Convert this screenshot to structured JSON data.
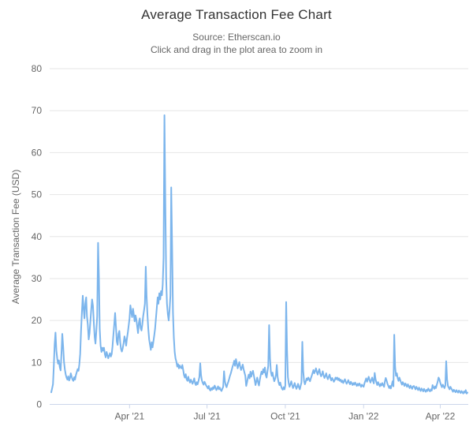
{
  "header": {
    "title": "Average Transaction Fee Chart",
    "subtitle_source": "Source: Etherscan.io",
    "subtitle_hint": "Click and drag in the plot area to zoom in"
  },
  "chart_data": {
    "type": "line",
    "title": "Average Transaction Fee Chart",
    "subtitle": "Source: Etherscan.io",
    "hint": "Click and drag in the plot area to zoom in",
    "xlabel": "",
    "ylabel": "Average Transaction Fee (USD)",
    "ylim": [
      0,
      80
    ],
    "yticks": [
      0,
      10,
      20,
      30,
      40,
      50,
      60,
      70,
      80
    ],
    "grid": true,
    "legend": false,
    "x_tick_labels": [
      "Apr '21",
      "Jul '21",
      "Oct '21",
      "Jan '22",
      "Apr '22"
    ],
    "x_tick_point_index": [
      92,
      183,
      275,
      367,
      457
    ],
    "x_range_note": "daily points, late Dec 2020 through early May 2022",
    "line_color": "#7cb5ec",
    "grid_color": "#e6e6e6",
    "axis_line_color": "#ccd6eb",
    "label_color": "#666666",
    "title_color": "#333333",
    "values": [
      2.9,
      3.8,
      4.8,
      8.9,
      14.2,
      17.1,
      12.8,
      10.9,
      9.7,
      10.5,
      8.9,
      8.1,
      12.3,
      16.8,
      13.8,
      10.1,
      8.3,
      7.1,
      6.4,
      5.9,
      6.7,
      5.7,
      6.3,
      7.4,
      6.6,
      5.9,
      5.6,
      6.5,
      5.9,
      7.0,
      7.7,
      8.4,
      8.0,
      9.5,
      12.0,
      17.5,
      22.0,
      25.9,
      23.0,
      20.5,
      24.0,
      25.5,
      21.0,
      19.0,
      15.5,
      17.0,
      20.0,
      22.5,
      25.0,
      23.5,
      19.5,
      16.0,
      14.5,
      17.5,
      21.0,
      38.5,
      30.0,
      18.0,
      14.0,
      12.5,
      13.5,
      12.8,
      13.5,
      12.0,
      11.2,
      12.5,
      11.8,
      11.0,
      11.6,
      12.2,
      11.4,
      12.0,
      13.8,
      16.5,
      19.0,
      21.8,
      18.5,
      15.0,
      14.2,
      16.8,
      17.5,
      14.8,
      13.2,
      12.6,
      13.4,
      14.6,
      16.2,
      15.4,
      14.0,
      15.8,
      17.2,
      18.9,
      20.5,
      23.6,
      22.0,
      20.8,
      22.8,
      21.5,
      19.8,
      21.2,
      20.2,
      18.5,
      17.0,
      19.5,
      20.5,
      18.2,
      17.6,
      19.0,
      21.0,
      22.4,
      24.0,
      32.8,
      26.0,
      21.5,
      18.0,
      15.5,
      14.2,
      13.0,
      14.8,
      13.6,
      15.0,
      16.5,
      18.0,
      20.5,
      23.0,
      25.5,
      24.0,
      26.5,
      25.0,
      27.0,
      26.0,
      28.5,
      35.0,
      68.9,
      48.0,
      30.0,
      24.0,
      21.5,
      20.0,
      22.5,
      26.0,
      51.7,
      38.0,
      22.0,
      16.0,
      12.5,
      11.0,
      10.2,
      9.0,
      9.6,
      8.6,
      9.3,
      8.8,
      8.6,
      9.4,
      8.2,
      7.0,
      6.4,
      7.2,
      6.0,
      5.6,
      6.6,
      5.8,
      5.2,
      5.9,
      5.4,
      4.9,
      5.5,
      6.2,
      5.0,
      4.6,
      5.3,
      4.8,
      5.6,
      6.5,
      9.8,
      7.0,
      5.7,
      5.1,
      4.7,
      5.4,
      5.0,
      4.5,
      4.2,
      3.8,
      4.4,
      3.6,
      3.3,
      3.9,
      3.5,
      4.1,
      3.7,
      4.5,
      4.0,
      3.4,
      3.8,
      4.3,
      3.6,
      4.0,
      3.5,
      3.2,
      3.7,
      4.2,
      7.9,
      5.5,
      4.6,
      4.1,
      4.8,
      5.4,
      6.1,
      6.8,
      7.4,
      8.2,
      9.0,
      9.6,
      10.4,
      9.2,
      10.8,
      9.8,
      8.6,
      9.3,
      10.1,
      9.0,
      8.2,
      8.8,
      9.5,
      8.4,
      7.6,
      6.8,
      4.4,
      5.2,
      6.3,
      7.1,
      6.2,
      7.8,
      6.6,
      7.4,
      8.0,
      6.9,
      5.8,
      4.6,
      5.5,
      6.4,
      5.2,
      4.5,
      5.8,
      6.9,
      7.8,
      7.2,
      8.4,
      7.6,
      8.8,
      7.0,
      6.4,
      7.9,
      9.2,
      18.9,
      11.0,
      7.8,
      6.8,
      7.6,
      6.4,
      5.5,
      6.1,
      7.0,
      9.4,
      6.5,
      5.3,
      4.6,
      5.2,
      4.4,
      3.8,
      3.5,
      4.1,
      3.6,
      4.5,
      24.4,
      13.0,
      6.5,
      5.0,
      4.2,
      4.8,
      5.5,
      4.6,
      3.9,
      4.4,
      5.1,
      4.3,
      3.7,
      4.2,
      4.9,
      4.1,
      3.6,
      4.5,
      5.2,
      14.9,
      8.0,
      5.6,
      4.8,
      5.4,
      6.2,
      5.8,
      6.4,
      6.0,
      5.5,
      6.2,
      6.8,
      7.5,
      8.2,
      7.4,
      7.9,
      8.6,
      7.7,
      7.1,
      7.8,
      8.4,
      7.3,
      6.7,
      7.2,
      7.9,
      6.9,
      6.3,
      6.8,
      7.4,
      6.5,
      6.0,
      6.6,
      7.1,
      6.2,
      5.7,
      6.3,
      5.9,
      5.4,
      5.8,
      6.4,
      6.0,
      6.4,
      5.8,
      6.2,
      5.6,
      5.9,
      5.3,
      5.7,
      5.1,
      5.5,
      6.0,
      5.4,
      4.9,
      5.3,
      5.8,
      5.2,
      4.8,
      5.4,
      5.0,
      4.6,
      5.1,
      4.7,
      5.2,
      4.8,
      4.4,
      4.9,
      4.5,
      5.0,
      4.6,
      4.2,
      4.7,
      4.4,
      4.2,
      5.0,
      5.6,
      6.2,
      5.4,
      6.0,
      6.6,
      5.8,
      5.2,
      5.8,
      6.4,
      5.6,
      5.0,
      7.5,
      6.0,
      5.2,
      4.6,
      5.3,
      4.8,
      4.3,
      4.9,
      4.5,
      5.1,
      4.6,
      4.2,
      5.5,
      6.3,
      5.7,
      4.9,
      4.4,
      3.9,
      4.4,
      3.8,
      4.6,
      5.5,
      4.3,
      16.6,
      9.0,
      6.8,
      7.4,
      6.2,
      5.6,
      6.4,
      5.8,
      5.2,
      4.7,
      5.3,
      4.9,
      4.4,
      5.0,
      4.6,
      4.2,
      4.8,
      4.3,
      3.9,
      4.5,
      4.1,
      3.7,
      4.3,
      4.4,
      4.0,
      3.6,
      4.2,
      3.8,
      3.4,
      4.0,
      3.6,
      3.2,
      3.8,
      3.5,
      3.1,
      3.7,
      3.3,
      3.0,
      3.5,
      3.2,
      3.8,
      3.4,
      3.1,
      3.6,
      3.3,
      4.6,
      4.1,
      3.7,
      4.3,
      3.9,
      4.7,
      5.4,
      6.4,
      6.0,
      5.2,
      4.6,
      4.1,
      4.7,
      4.3,
      3.9,
      4.5,
      10.3,
      6.0,
      4.4,
      4.0,
      3.6,
      4.2,
      3.8,
      3.4,
      3.0,
      3.5,
      3.2,
      2.9,
      3.4,
      3.1,
      2.8,
      3.3,
      3.0,
      2.7,
      3.2,
      2.9,
      2.6,
      3.1,
      2.8,
      3.4,
      2.6,
      2.8
    ]
  }
}
